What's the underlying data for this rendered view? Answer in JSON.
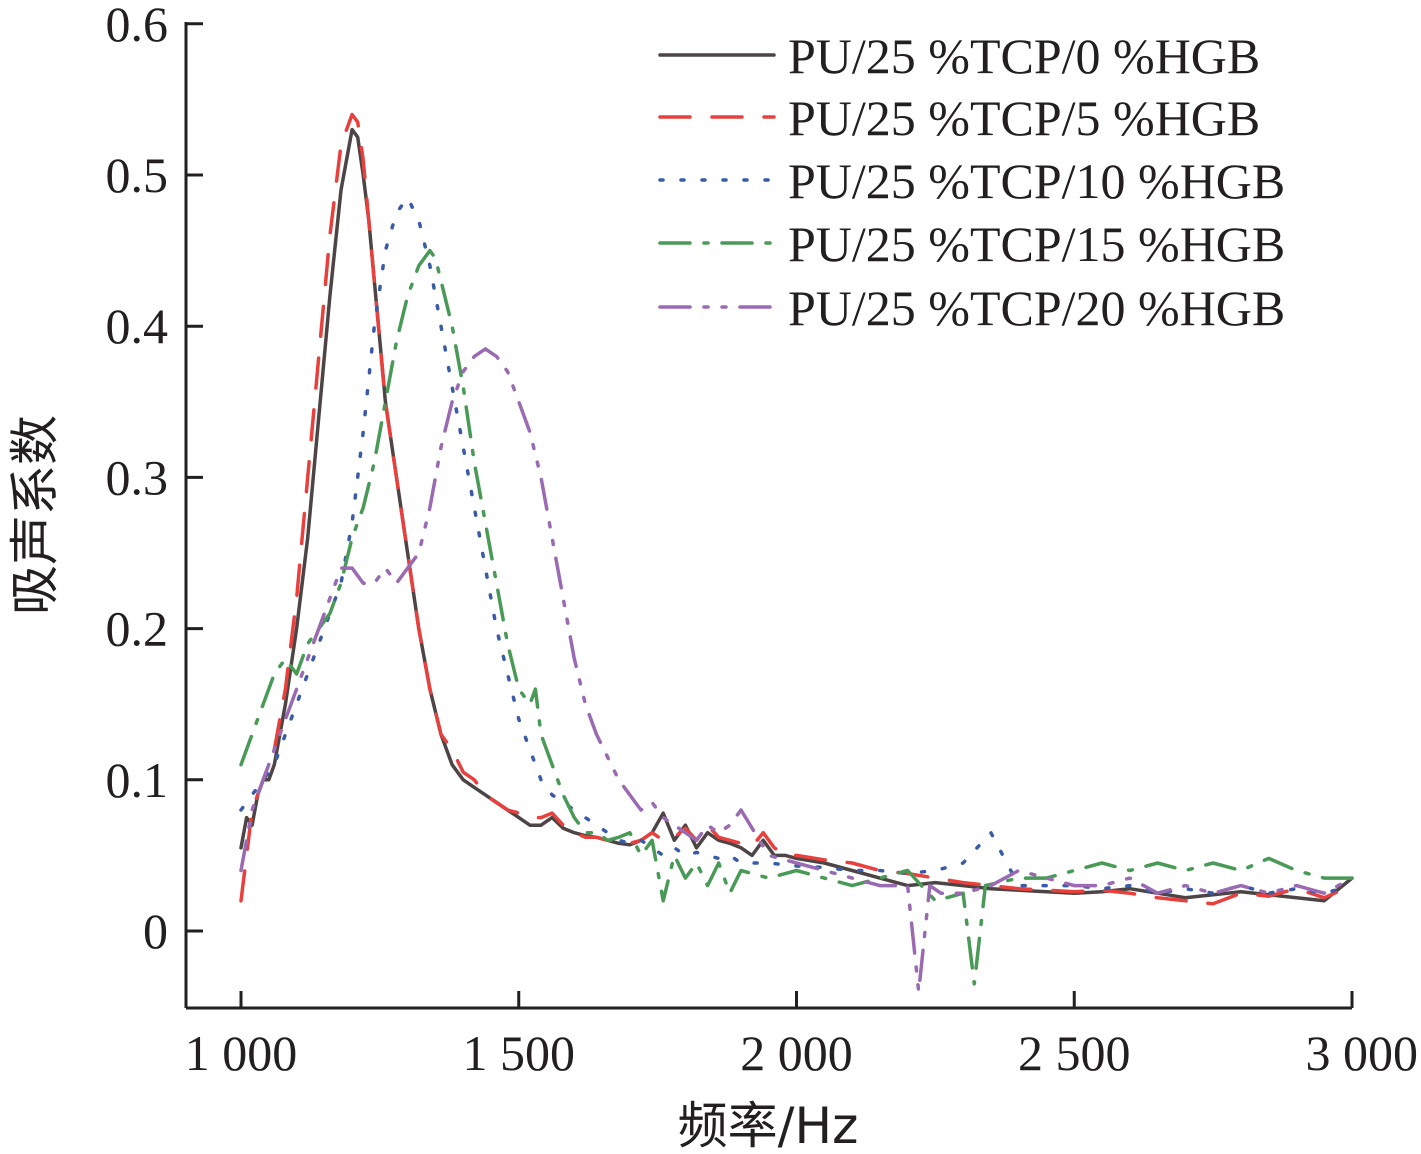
{
  "chart_data": {
    "type": "line",
    "xlabel": "频率/Hz",
    "ylabel": "吸声系数",
    "xlim": [
      1000,
      3000
    ],
    "ylim": [
      -0.05,
      0.6
    ],
    "x_ticks": [
      1000,
      1500,
      2000,
      2500,
      3000
    ],
    "x_tick_labels": [
      "1 000",
      "1 500",
      "2 000",
      "2 500",
      "3 000"
    ],
    "y_ticks": [
      0,
      0.1,
      0.2,
      0.3,
      0.4,
      0.5,
      0.6
    ],
    "y_tick_labels": [
      "0",
      "0.1",
      "0.2",
      "0.3",
      "0.4",
      "0.5",
      "0.6"
    ],
    "grid": false,
    "legend_position": "top-right",
    "series": [
      {
        "name": "PU/25 %TCP/0 %HGB",
        "color": "#4d4545",
        "dash": "solid",
        "x": [
          1000,
          1010,
          1020,
          1030,
          1040,
          1050,
          1060,
          1080,
          1100,
          1120,
          1140,
          1160,
          1180,
          1200,
          1210,
          1220,
          1230,
          1240,
          1250,
          1260,
          1280,
          1300,
          1320,
          1340,
          1360,
          1380,
          1400,
          1420,
          1440,
          1460,
          1480,
          1500,
          1520,
          1540,
          1560,
          1580,
          1600,
          1620,
          1640,
          1660,
          1680,
          1700,
          1720,
          1740,
          1760,
          1780,
          1800,
          1820,
          1840,
          1860,
          1880,
          1900,
          1920,
          1940,
          1960,
          1980,
          2000,
          2050,
          2100,
          2150,
          2200,
          2250,
          2300,
          2350,
          2400,
          2450,
          2500,
          2550,
          2600,
          2650,
          2700,
          2750,
          2800,
          2850,
          2900,
          2950,
          3000
        ],
        "y": [
          0.055,
          0.075,
          0.07,
          0.09,
          0.1,
          0.1,
          0.11,
          0.15,
          0.2,
          0.26,
          0.34,
          0.42,
          0.49,
          0.53,
          0.525,
          0.5,
          0.47,
          0.43,
          0.39,
          0.35,
          0.3,
          0.25,
          0.2,
          0.16,
          0.13,
          0.11,
          0.1,
          0.095,
          0.09,
          0.085,
          0.08,
          0.075,
          0.07,
          0.07,
          0.075,
          0.068,
          0.065,
          0.063,
          0.062,
          0.06,
          0.058,
          0.057,
          0.06,
          0.065,
          0.078,
          0.06,
          0.07,
          0.055,
          0.065,
          0.06,
          0.058,
          0.055,
          0.05,
          0.06,
          0.05,
          0.05,
          0.048,
          0.045,
          0.04,
          0.035,
          0.03,
          0.032,
          0.03,
          0.028,
          0.027,
          0.026,
          0.025,
          0.026,
          0.028,
          0.025,
          0.022,
          0.024,
          0.026,
          0.024,
          0.022,
          0.02,
          0.035
        ]
      },
      {
        "name": "PU/25 %TCP/5 %HGB",
        "color": "#e8403d",
        "dash": "30,22",
        "x": [
          1000,
          1010,
          1020,
          1030,
          1040,
          1050,
          1060,
          1080,
          1100,
          1120,
          1140,
          1160,
          1180,
          1200,
          1210,
          1220,
          1230,
          1240,
          1250,
          1260,
          1280,
          1300,
          1320,
          1340,
          1360,
          1380,
          1400,
          1420,
          1440,
          1460,
          1480,
          1500,
          1520,
          1540,
          1560,
          1580,
          1600,
          1620,
          1640,
          1660,
          1680,
          1700,
          1720,
          1740,
          1760,
          1780,
          1800,
          1820,
          1840,
          1860,
          1880,
          1900,
          1920,
          1940,
          1960,
          1980,
          2000,
          2050,
          2100,
          2150,
          2200,
          2250,
          2300,
          2350,
          2400,
          2450,
          2500,
          2550,
          2600,
          2650,
          2700,
          2750,
          2800,
          2850,
          2900,
          2950,
          3000
        ],
        "y": [
          0.02,
          0.05,
          0.08,
          0.09,
          0.1,
          0.11,
          0.12,
          0.16,
          0.22,
          0.3,
          0.38,
          0.46,
          0.52,
          0.54,
          0.535,
          0.51,
          0.47,
          0.43,
          0.39,
          0.35,
          0.3,
          0.25,
          0.2,
          0.16,
          0.13,
          0.12,
          0.105,
          0.1,
          0.09,
          0.085,
          0.08,
          0.078,
          0.075,
          0.075,
          0.078,
          0.07,
          0.065,
          0.062,
          0.062,
          0.06,
          0.06,
          0.058,
          0.06,
          0.065,
          0.06,
          0.062,
          0.068,
          0.06,
          0.07,
          0.062,
          0.06,
          0.058,
          0.056,
          0.065,
          0.055,
          0.05,
          0.05,
          0.047,
          0.045,
          0.04,
          0.038,
          0.035,
          0.032,
          0.03,
          0.028,
          0.027,
          0.026,
          0.027,
          0.025,
          0.022,
          0.02,
          0.018,
          0.025,
          0.023,
          0.028,
          0.022,
          0.03
        ]
      },
      {
        "name": "PU/25 %TCP/10 %HGB",
        "color": "#3a5ca8",
        "dash": "3,18",
        "x": [
          1000,
          1020,
          1040,
          1060,
          1080,
          1100,
          1120,
          1140,
          1160,
          1180,
          1200,
          1220,
          1240,
          1260,
          1280,
          1300,
          1320,
          1340,
          1360,
          1380,
          1400,
          1420,
          1440,
          1460,
          1480,
          1500,
          1520,
          1540,
          1560,
          1580,
          1600,
          1620,
          1640,
          1660,
          1680,
          1700,
          1720,
          1740,
          1760,
          1780,
          1800,
          1820,
          1840,
          1860,
          1880,
          1900,
          1950,
          2000,
          2050,
          2100,
          2150,
          2200,
          2250,
          2300,
          2350,
          2400,
          2450,
          2500,
          2550,
          2600,
          2650,
          2700,
          2750,
          2800,
          2850,
          2900,
          2950,
          3000
        ],
        "y": [
          0.08,
          0.09,
          0.1,
          0.11,
          0.13,
          0.15,
          0.17,
          0.19,
          0.21,
          0.23,
          0.27,
          0.33,
          0.4,
          0.45,
          0.475,
          0.485,
          0.47,
          0.44,
          0.4,
          0.36,
          0.32,
          0.28,
          0.24,
          0.2,
          0.17,
          0.14,
          0.12,
          0.1,
          0.09,
          0.085,
          0.08,
          0.075,
          0.07,
          0.065,
          0.06,
          0.058,
          0.06,
          0.055,
          0.05,
          0.055,
          0.05,
          0.052,
          0.05,
          0.048,
          0.05,
          0.045,
          0.045,
          0.043,
          0.042,
          0.04,
          0.04,
          0.038,
          0.04,
          0.045,
          0.065,
          0.03,
          0.03,
          0.03,
          0.028,
          0.03,
          0.025,
          0.028,
          0.025,
          0.03,
          0.025,
          0.028,
          0.025,
          0.03
        ]
      },
      {
        "name": "PU/25 %TCP/15 %HGB",
        "color": "#4a9a57",
        "dash": "30,14,4,14",
        "x": [
          1000,
          1020,
          1040,
          1060,
          1080,
          1100,
          1120,
          1140,
          1160,
          1180,
          1200,
          1220,
          1240,
          1260,
          1280,
          1300,
          1320,
          1340,
          1350,
          1360,
          1380,
          1400,
          1420,
          1440,
          1460,
          1480,
          1500,
          1520,
          1530,
          1540,
          1560,
          1580,
          1600,
          1620,
          1640,
          1660,
          1680,
          1700,
          1720,
          1740,
          1760,
          1780,
          1800,
          1820,
          1840,
          1860,
          1880,
          1900,
          1950,
          2000,
          2050,
          2100,
          2150,
          2200,
          2250,
          2300,
          2320,
          2340,
          2400,
          2450,
          2500,
          2550,
          2600,
          2650,
          2700,
          2750,
          2800,
          2850,
          2900,
          2950,
          3000
        ],
        "y": [
          0.11,
          0.13,
          0.15,
          0.17,
          0.18,
          0.17,
          0.19,
          0.2,
          0.21,
          0.23,
          0.26,
          0.28,
          0.31,
          0.35,
          0.39,
          0.42,
          0.44,
          0.45,
          0.445,
          0.43,
          0.4,
          0.36,
          0.31,
          0.27,
          0.23,
          0.19,
          0.16,
          0.15,
          0.16,
          0.13,
          0.11,
          0.09,
          0.075,
          0.065,
          0.065,
          0.06,
          0.062,
          0.065,
          0.05,
          0.06,
          0.02,
          0.05,
          0.035,
          0.045,
          0.03,
          0.045,
          0.025,
          0.04,
          0.035,
          0.04,
          0.035,
          0.03,
          0.035,
          0.04,
          0.02,
          0.025,
          -0.035,
          0.03,
          0.035,
          0.035,
          0.04,
          0.045,
          0.04,
          0.045,
          0.04,
          0.045,
          0.04,
          0.048,
          0.04,
          0.035,
          0.035
        ]
      },
      {
        "name": "PU/25 %TCP/20 %HGB",
        "color": "#9a6ab2",
        "dash": "30,14,4,14,4,14",
        "x": [
          1000,
          1020,
          1040,
          1060,
          1080,
          1100,
          1120,
          1140,
          1160,
          1180,
          1200,
          1220,
          1240,
          1260,
          1280,
          1300,
          1320,
          1340,
          1360,
          1380,
          1400,
          1420,
          1440,
          1460,
          1480,
          1500,
          1520,
          1540,
          1560,
          1580,
          1600,
          1620,
          1640,
          1660,
          1680,
          1700,
          1720,
          1740,
          1760,
          1780,
          1800,
          1820,
          1840,
          1860,
          1880,
          1900,
          1950,
          2000,
          2050,
          2100,
          2150,
          2200,
          2220,
          2240,
          2260,
          2300,
          2350,
          2400,
          2450,
          2500,
          2550,
          2600,
          2650,
          2700,
          2750,
          2800,
          2850,
          2900,
          2950,
          3000
        ],
        "y": [
          0.04,
          0.08,
          0.1,
          0.12,
          0.14,
          0.16,
          0.18,
          0.2,
          0.22,
          0.24,
          0.24,
          0.23,
          0.23,
          0.24,
          0.23,
          0.24,
          0.25,
          0.28,
          0.32,
          0.35,
          0.37,
          0.38,
          0.385,
          0.38,
          0.37,
          0.35,
          0.33,
          0.3,
          0.26,
          0.22,
          0.18,
          0.15,
          0.13,
          0.115,
          0.1,
          0.09,
          0.08,
          0.085,
          0.075,
          0.07,
          0.065,
          0.06,
          0.07,
          0.065,
          0.07,
          0.08,
          0.05,
          0.045,
          0.04,
          0.035,
          0.03,
          0.03,
          -0.04,
          0.03,
          0.025,
          0.025,
          0.03,
          0.04,
          0.035,
          0.03,
          0.03,
          0.035,
          0.025,
          0.03,
          0.025,
          0.03,
          0.025,
          0.03,
          0.025,
          0.035
        ]
      }
    ]
  }
}
